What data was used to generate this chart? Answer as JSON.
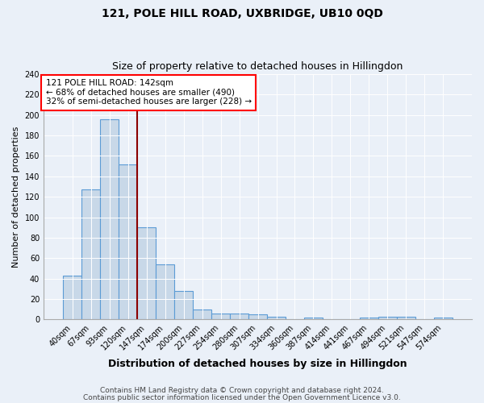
{
  "title": "121, POLE HILL ROAD, UXBRIDGE, UB10 0QD",
  "subtitle": "Size of property relative to detached houses in Hillingdon",
  "xlabel": "Distribution of detached houses by size in Hillingdon",
  "ylabel": "Number of detached properties",
  "bar_labels": [
    "40sqm",
    "67sqm",
    "93sqm",
    "120sqm",
    "147sqm",
    "174sqm",
    "200sqm",
    "227sqm",
    "254sqm",
    "280sqm",
    "307sqm",
    "334sqm",
    "360sqm",
    "387sqm",
    "414sqm",
    "441sqm",
    "467sqm",
    "494sqm",
    "521sqm",
    "547sqm",
    "574sqm"
  ],
  "bar_values": [
    43,
    127,
    196,
    152,
    90,
    54,
    28,
    10,
    6,
    6,
    5,
    3,
    0,
    2,
    0,
    0,
    2,
    3,
    3,
    0,
    2
  ],
  "bar_color": "#c8d8e8",
  "bar_edge_color": "#5b9bd5",
  "vline_position": 3.5,
  "vline_color": "#8b0000",
  "annotation_text": "121 POLE HILL ROAD: 142sqm\n← 68% of detached houses are smaller (490)\n32% of semi-detached houses are larger (228) →",
  "annotation_box_color": "white",
  "annotation_box_edge_color": "red",
  "ylim": [
    0,
    240
  ],
  "yticks": [
    0,
    20,
    40,
    60,
    80,
    100,
    120,
    140,
    160,
    180,
    200,
    220,
    240
  ],
  "footer_line1": "Contains HM Land Registry data © Crown copyright and database right 2024.",
  "footer_line2": "Contains public sector information licensed under the Open Government Licence v3.0.",
  "background_color": "#eaf0f8",
  "plot_bg_color": "#eaf0f8",
  "title_fontsize": 10,
  "subtitle_fontsize": 9,
  "xlabel_fontsize": 9,
  "ylabel_fontsize": 8,
  "tick_fontsize": 7,
  "annotation_fontsize": 7.5,
  "footer_fontsize": 6.5
}
